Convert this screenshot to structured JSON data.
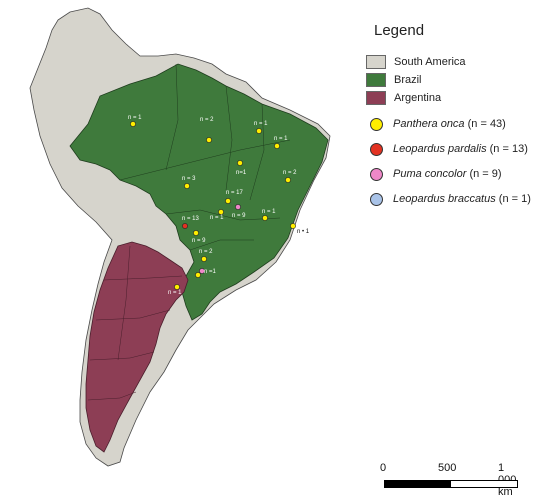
{
  "legend": {
    "title": "Legend",
    "areas": [
      {
        "label": "South America",
        "color": "#d6d4cc"
      },
      {
        "label": "Brazil",
        "color": "#3f7a3c"
      },
      {
        "label": "Argentina",
        "color": "#8d3e55"
      }
    ],
    "species": [
      {
        "name": "Panthera onca",
        "count": "(n = 43)",
        "color": "#ffee00"
      },
      {
        "name": "Leopardus pardalis",
        "count": "(n = 13)",
        "color": "#e23222"
      },
      {
        "name": "Puma concolor",
        "count": "(n = 9)",
        "color": "#ee88c8"
      },
      {
        "name": "Leopardus braccatus",
        "count": "(n = 1)",
        "color": "#a9c3e8"
      }
    ]
  },
  "map": {
    "sample_labels": [
      {
        "text": "n = 1"
      },
      {
        "text": "n = 2"
      },
      {
        "text": "n = 1"
      },
      {
        "text": "n = 1"
      },
      {
        "text": "n = 3"
      },
      {
        "text": "n=1"
      },
      {
        "text": "n = 2"
      },
      {
        "text": "n = 17"
      },
      {
        "text": "n = 1"
      },
      {
        "text": "n = 9"
      },
      {
        "text": "n = 13"
      },
      {
        "text": "n = 1"
      },
      {
        "text": "n = 9"
      },
      {
        "text": "n • 1"
      },
      {
        "text": "n = 2"
      },
      {
        "text": "n =1"
      },
      {
        "text": "n = 1"
      }
    ]
  },
  "scale": {
    "ticks": [
      "0",
      "500",
      "1 000 km"
    ]
  }
}
